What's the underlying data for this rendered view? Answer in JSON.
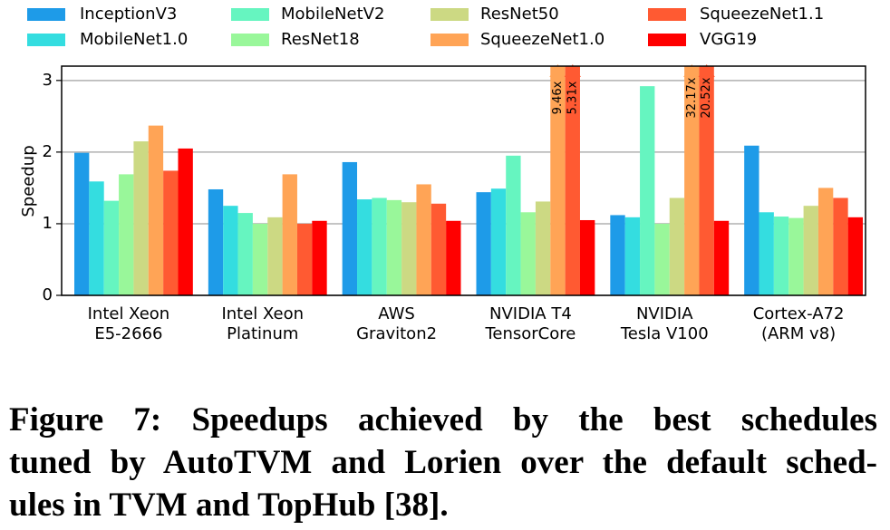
{
  "chart_data": {
    "type": "bar",
    "y_label": "Speedup",
    "categories": [
      [
        "Intel Xeon",
        "E5-2666"
      ],
      [
        "Intel Xeon",
        "Platinum"
      ],
      [
        "AWS",
        "Graviton2"
      ],
      [
        "NVIDIA T4",
        "TensorCore"
      ],
      [
        "NVIDIA",
        "Tesla V100"
      ],
      [
        "Cortex-A72",
        "(ARM v8)"
      ]
    ],
    "series": [
      {
        "name": "InceptionV3",
        "color": "#1e9be8",
        "values": [
          1.99,
          1.48,
          1.86,
          1.44,
          1.12,
          2.09
        ]
      },
      {
        "name": "MobileNet1.0",
        "color": "#34dde0",
        "values": [
          1.59,
          1.25,
          1.34,
          1.49,
          1.09,
          1.16
        ]
      },
      {
        "name": "MobileNetV2",
        "color": "#66f5c0",
        "values": [
          1.32,
          1.15,
          1.36,
          1.95,
          2.92,
          1.1
        ]
      },
      {
        "name": "ResNet18",
        "color": "#99f79a",
        "values": [
          1.69,
          1.0,
          1.33,
          1.16,
          1.0,
          1.08
        ]
      },
      {
        "name": "ResNet50",
        "color": "#ccd983",
        "values": [
          2.15,
          1.09,
          1.3,
          1.31,
          1.36,
          1.25
        ]
      },
      {
        "name": "SqueezeNet1.0",
        "color": "#ffa456",
        "values": [
          2.37,
          1.69,
          1.55,
          9.46,
          32.17,
          1.5
        ],
        "value_labels": [
          null,
          null,
          null,
          "9.46x",
          "32.17x",
          null
        ]
      },
      {
        "name": "SqueezeNet1.1",
        "color": "#ff5a32",
        "values": [
          1.74,
          1.0,
          1.28,
          5.31,
          20.52,
          1.36
        ],
        "value_labels": [
          null,
          null,
          null,
          "5.31x",
          "20.52x",
          null
        ]
      },
      {
        "name": "VGG19",
        "color": "#ff0000",
        "values": [
          2.05,
          1.04,
          1.04,
          1.05,
          1.04,
          1.09
        ]
      }
    ],
    "ylim": [
      0,
      3.2
    ],
    "yticks": [
      0,
      1,
      2,
      3
    ],
    "grid": true
  },
  "caption": [
    "Figure 7: Speedups achieved by the best schedules",
    "tuned by AutoTVM and Lorien over the default sched-",
    "ules in TVM and TopHub [38]."
  ]
}
